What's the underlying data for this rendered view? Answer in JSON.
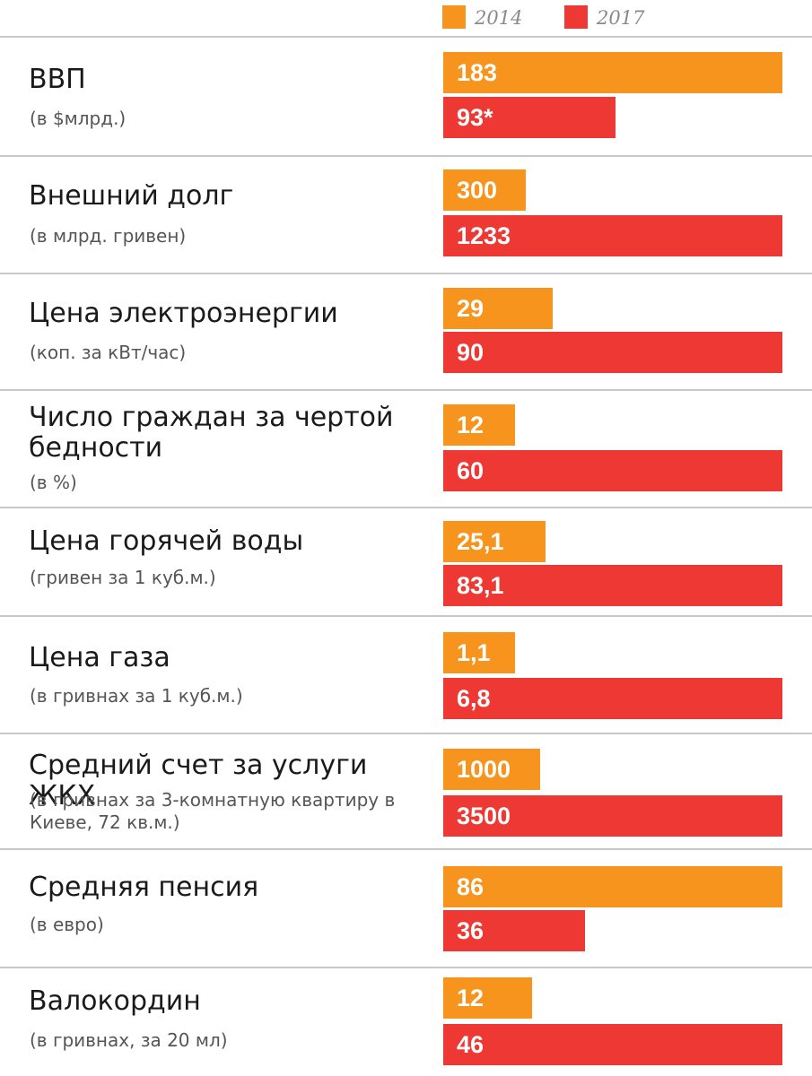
{
  "colors": {
    "y2014": "#f7941d",
    "y2017": "#ed3833",
    "divider": "#c8c8c8"
  },
  "legend": {
    "y2014": "2014",
    "y2017": "2017"
  },
  "chart_data": {
    "type": "bar",
    "orientation": "horizontal",
    "legend_placement": "top-right",
    "series": [
      {
        "name": "2014",
        "values": [
          183,
          300,
          29,
          12,
          25.1,
          1.1,
          1000,
          86,
          12
        ]
      },
      {
        "name": "2017",
        "values": [
          93,
          1233,
          90,
          60,
          83.1,
          6.8,
          3500,
          36,
          46
        ]
      }
    ],
    "rows": [
      {
        "title": "ВВП",
        "subtitle": "(в $млрд.)",
        "label2014": "183",
        "label2017": "93*",
        "v2014": 183,
        "v2017": 93
      },
      {
        "title": "Внешний долг",
        "subtitle": "(в млрд. гривен)",
        "label2014": "300",
        "label2017": "1233",
        "v2014": 300,
        "v2017": 1233
      },
      {
        "title": "Цена электроэнергии",
        "subtitle": "(коп. за кВт/час)",
        "label2014": "29",
        "label2017": "90",
        "v2014": 29,
        "v2017": 90
      },
      {
        "title": "Число граждан за чертой бедности",
        "subtitle": "(в %)",
        "label2014": "12",
        "label2017": "60",
        "v2014": 12,
        "v2017": 60
      },
      {
        "title": "Цена горячей воды",
        "subtitle": "(гривен за 1 куб.м.)",
        "label2014": "25,1",
        "label2017": "83,1",
        "v2014": 25.1,
        "v2017": 83.1
      },
      {
        "title": "Цена газа",
        "subtitle": "(в гривнах за 1 куб.м.)",
        "label2014": "1,1",
        "label2017": "6,8",
        "v2014": 1.1,
        "v2017": 6.8
      },
      {
        "title": "Средний счет за услуги ЖКХ",
        "subtitle": "(в гривнах за 3-комнатную квартиру в Киеве, 72 кв.м.)",
        "label2014": "1000",
        "label2017": "3500",
        "v2014": 1000,
        "v2017": 3500
      },
      {
        "title": "Средняя пенсия",
        "subtitle": "(в евро)",
        "label2014": "86",
        "label2017": "36",
        "v2014": 86,
        "v2017": 36
      },
      {
        "title": "Валокордин",
        "subtitle": "(в гривнах, за 20 мл)",
        "label2014": "12",
        "label2017": "46",
        "v2014": 12,
        "v2017": 46
      }
    ]
  }
}
